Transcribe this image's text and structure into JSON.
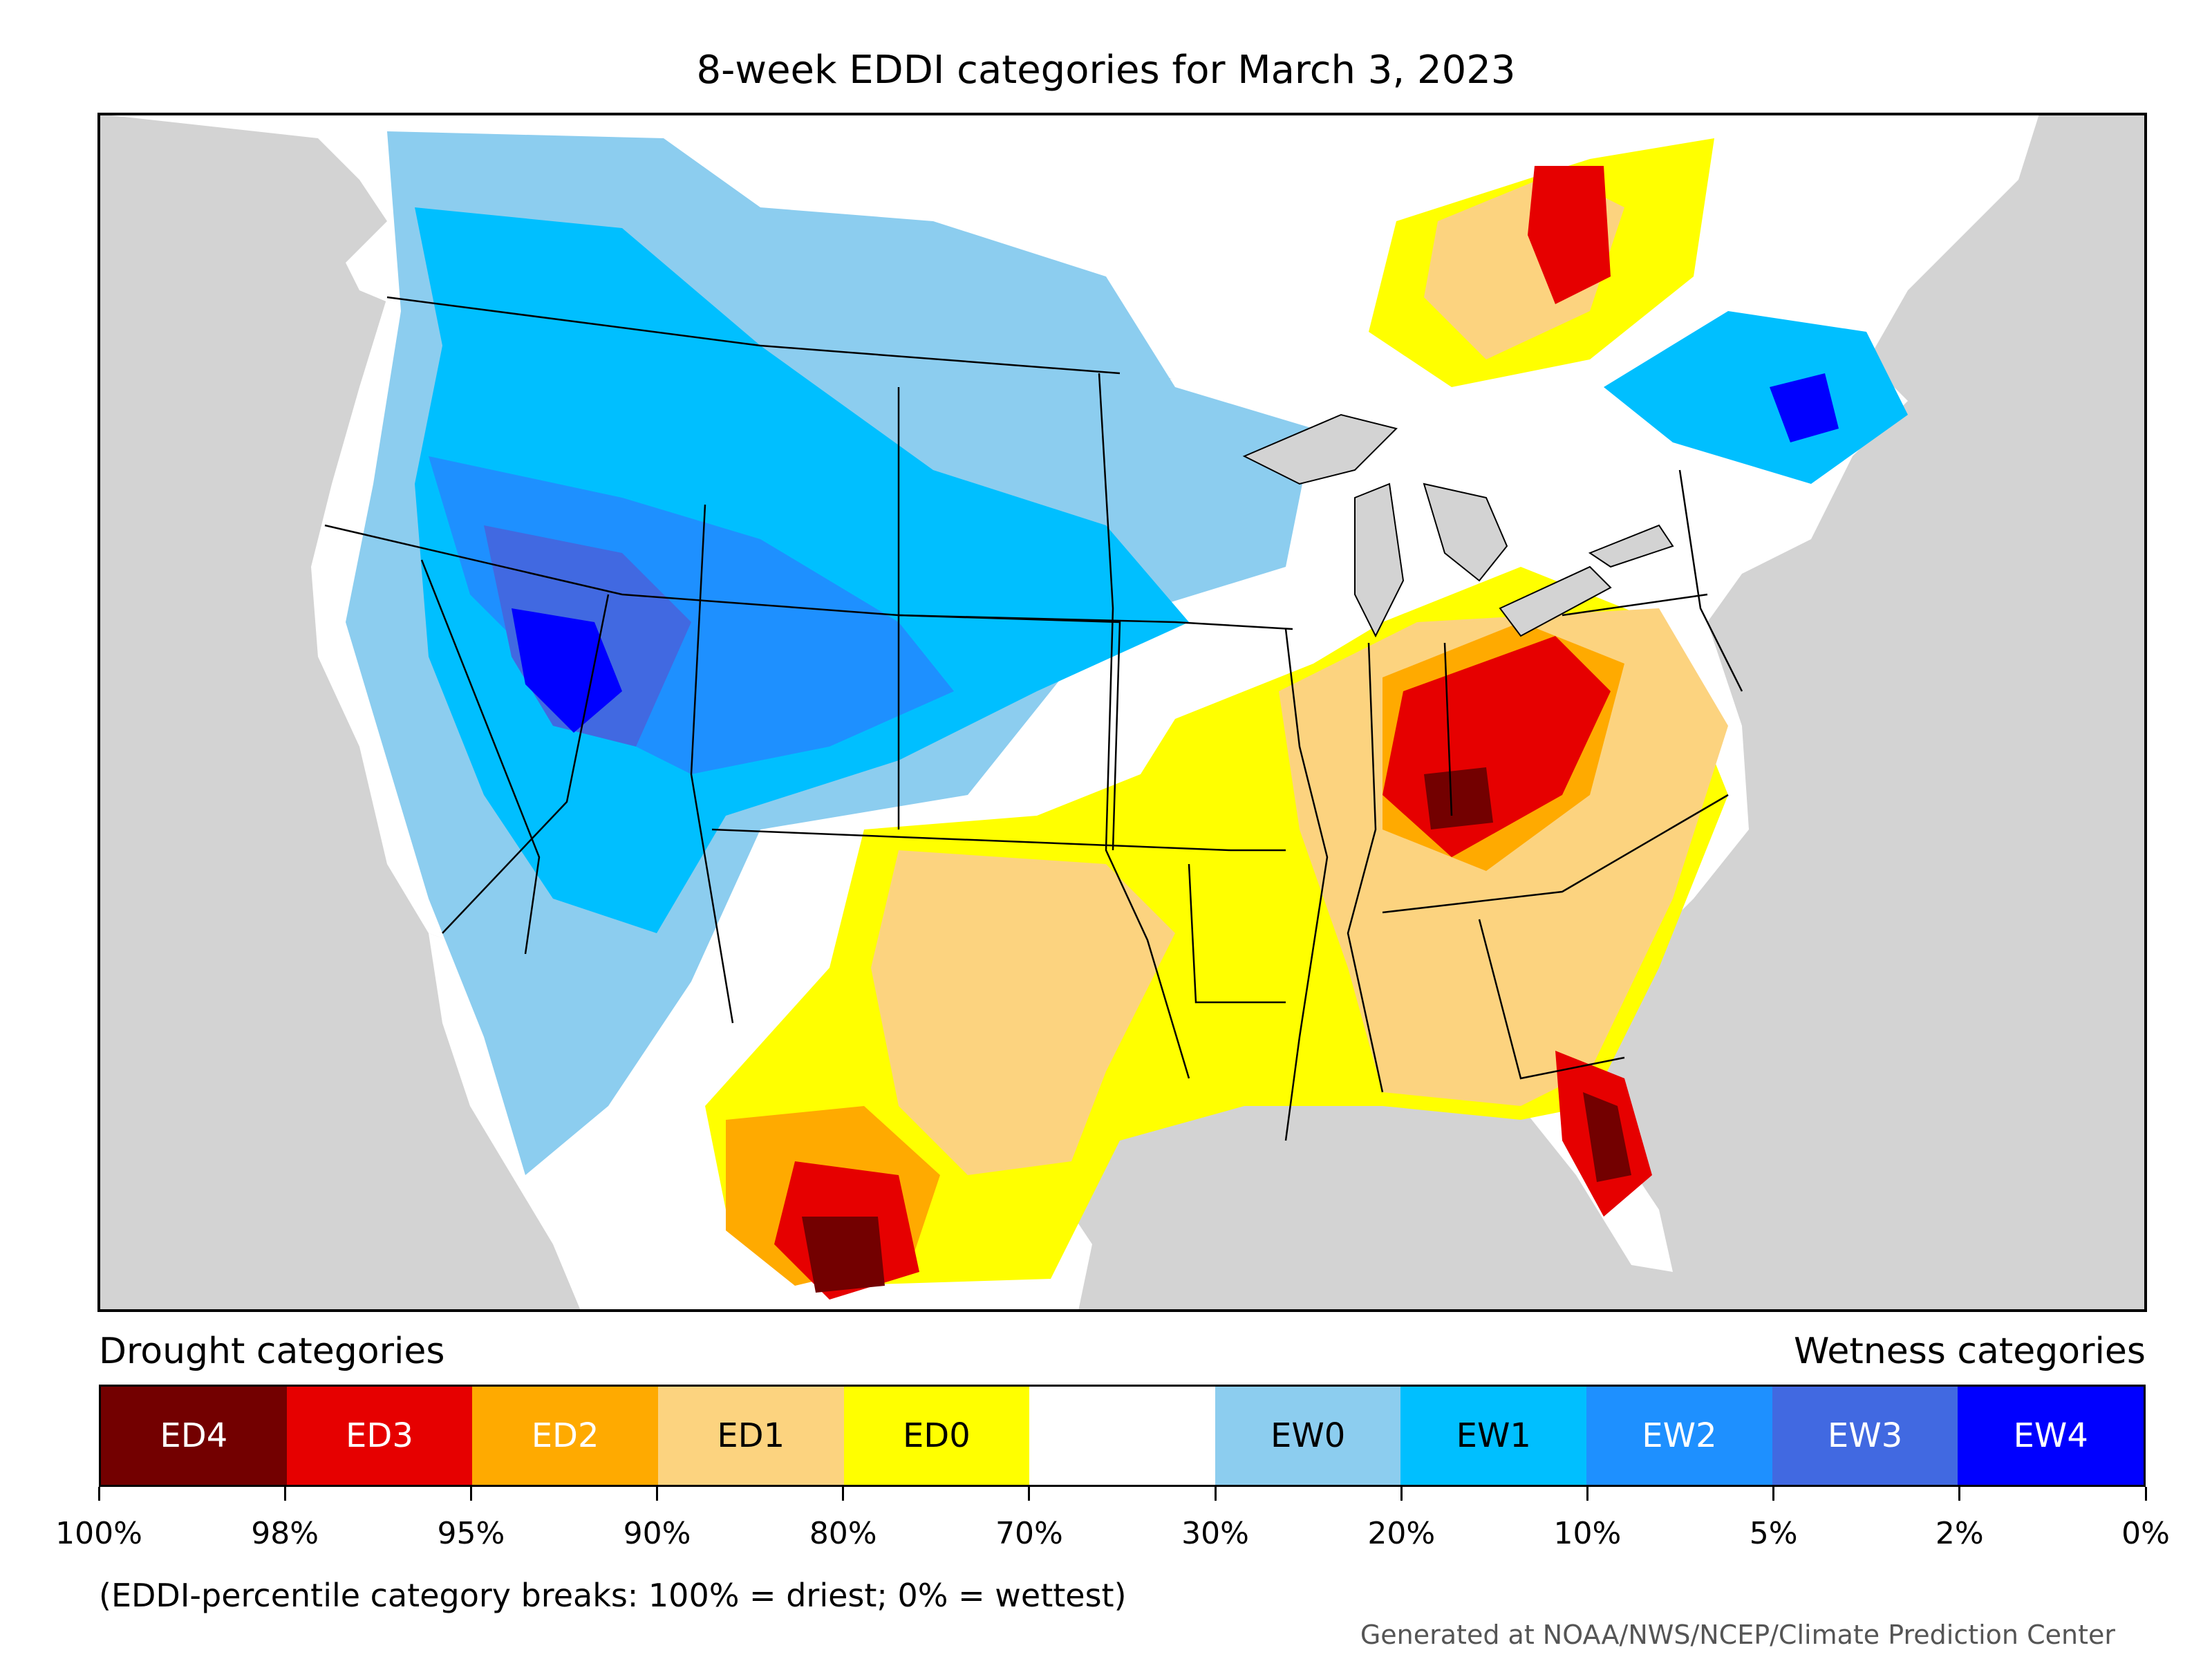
{
  "title": "8-week EDDI categories for March 3, 2023",
  "legend": {
    "drought_heading": "Drought categories",
    "wetness_heading": "Wetness categories",
    "categories": [
      {
        "label": "ED4",
        "color": "#730000",
        "text_color": "#ffffff"
      },
      {
        "label": "ED3",
        "color": "#e60000",
        "text_color": "#ffffff"
      },
      {
        "label": "ED2",
        "color": "#ffaa00",
        "text_color": "#ffffff"
      },
      {
        "label": "ED1",
        "color": "#fcd37f",
        "text_color": "#000000"
      },
      {
        "label": "ED0",
        "color": "#ffff00",
        "text_color": "#000000"
      },
      {
        "label": "",
        "color": "#ffffff",
        "text_color": "#000000"
      },
      {
        "label": "EW0",
        "color": "#8ccdef",
        "text_color": "#000000"
      },
      {
        "label": "EW1",
        "color": "#00bfff",
        "text_color": "#000000"
      },
      {
        "label": "EW2",
        "color": "#1e90ff",
        "text_color": "#ffffff"
      },
      {
        "label": "EW3",
        "color": "#4169e1",
        "text_color": "#ffffff"
      },
      {
        "label": "EW4",
        "color": "#0000ff",
        "text_color": "#ffffff"
      }
    ],
    "ticks": [
      "100%",
      "98%",
      "95%",
      "90%",
      "80%",
      "70%",
      "30%",
      "20%",
      "10%",
      "5%",
      "2%",
      "0%"
    ]
  },
  "breaks_note": "(EDDI-percentile category breaks: 100% = driest; 0% = wettest)",
  "credit": "Generated at NOAA/NWS/NCEP/Climate Prediction Center",
  "colors": {
    "non_conus_land": "#d3d3d3",
    "water": "#d3d3d3",
    "frame": "#000000"
  }
}
